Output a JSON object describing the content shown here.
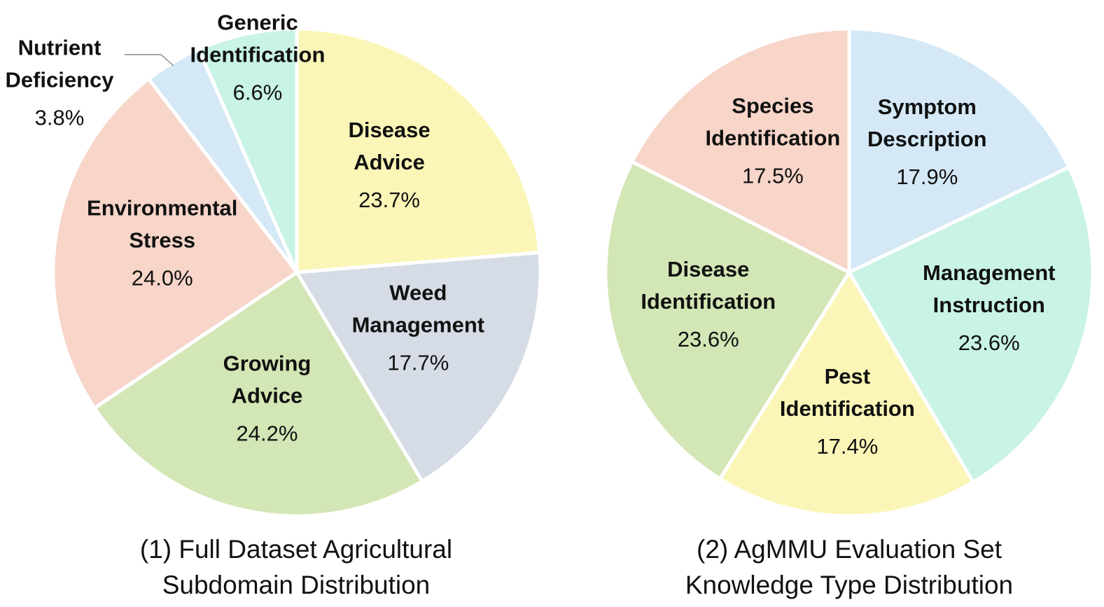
{
  "chart_data": [
    {
      "type": "pie",
      "title": "(1) Full Dataset Agricultural Subdomain Distribution",
      "title_lines": [
        "(1) Full Dataset Agricultural",
        "Subdomain Distribution"
      ],
      "start": "top, clockwise",
      "slices": [
        {
          "label_lines": [
            "Disease",
            "Advice"
          ],
          "label": "Disease Advice",
          "value": 23.7,
          "pct": "23.7%",
          "color": "#fbf6b7"
        },
        {
          "label_lines": [
            "Weed",
            "Management"
          ],
          "label": "Weed Management",
          "value": 17.7,
          "pct": "17.7%",
          "color": "#d6dce6"
        },
        {
          "label_lines": [
            "Growing",
            "Advice"
          ],
          "label": "Growing Advice",
          "value": 24.2,
          "pct": "24.2%",
          "color": "#d3e6b5"
        },
        {
          "label_lines": [
            "Environmental",
            "Stress"
          ],
          "label": "Environmental Stress",
          "value": 24.0,
          "pct": "24.0%",
          "color": "#f7d5c9"
        },
        {
          "label_lines": [
            "Nutrient",
            "Deficiency"
          ],
          "label": "Nutrient Deficiency",
          "value": 3.8,
          "pct": "3.8%",
          "color": "#d4e8f6",
          "label_position": "outside-left"
        },
        {
          "label_lines": [
            "Generic",
            "Identification"
          ],
          "label": "Generic Identification",
          "value": 6.6,
          "pct": "6.6%",
          "color": "#c8f3e6"
        }
      ]
    },
    {
      "type": "pie",
      "title": "(2) AgMMU Evaluation Set Knowledge Type Distribution",
      "title_lines": [
        "(2) AgMMU Evaluation Set",
        "Knowledge Type Distribution"
      ],
      "start": "top, clockwise",
      "slices": [
        {
          "label_lines": [
            "Symptom",
            "Description"
          ],
          "label": "Symptom Description",
          "value": 17.9,
          "pct": "17.9%",
          "color": "#d4e8f6"
        },
        {
          "label_lines": [
            "Management",
            "Instruction"
          ],
          "label": "Management Instruction",
          "value": 23.6,
          "pct": "23.6%",
          "color": "#c8f3e6"
        },
        {
          "label_lines": [
            "Pest",
            "Identification"
          ],
          "label": "Pest Identification",
          "value": 17.4,
          "pct": "17.4%",
          "color": "#fbf6b7"
        },
        {
          "label_lines": [
            "Disease",
            "Identification"
          ],
          "label": "Disease Identification",
          "value": 23.6,
          "pct": "23.6%",
          "color": "#d3e6b5"
        },
        {
          "label_lines": [
            "Species",
            "Identification"
          ],
          "label": "Species Identification",
          "value": 17.5,
          "pct": "17.5%",
          "color": "#f7d5c9"
        }
      ]
    }
  ]
}
